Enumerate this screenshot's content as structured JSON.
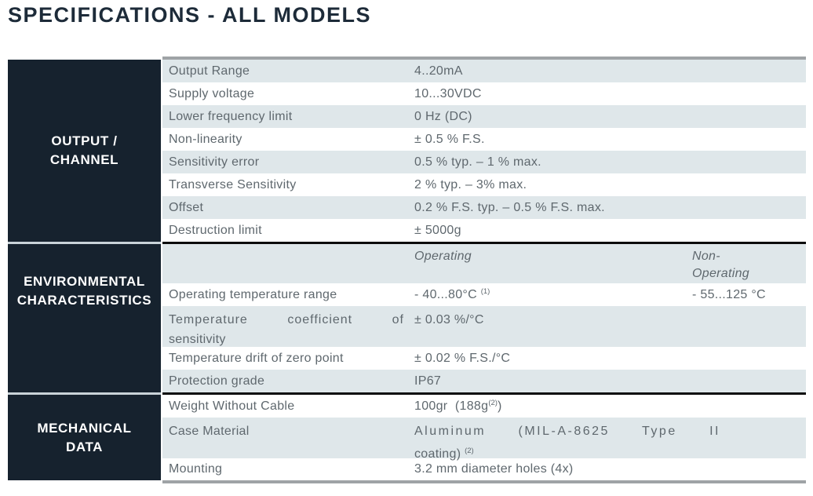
{
  "page_title": "SPECIFICATIONS - ALL MODELS",
  "colors": {
    "header_bg": "#16222e",
    "stripe": "#dfe7ea",
    "row_text": "#5f686e",
    "header_text": "#ffffff",
    "divider_black": "#0c0c0c",
    "outer_border_gray": "#9fa3a6",
    "title_text": "#1d2b39",
    "section_gap": "#c9d3d8"
  },
  "table": {
    "sections": [
      {
        "header": "OUTPUT / CHANNEL",
        "header_lines": [
          "OUTPUT /",
          "CHANNEL"
        ],
        "rows": [
          {
            "label": "Output Range",
            "value": "4..20mA"
          },
          {
            "label": "Supply voltage",
            "value": "10...30VDC"
          },
          {
            "label": "Lower frequency limit",
            "value": "0 Hz (DC)"
          },
          {
            "label": "Non-linearity",
            "value": "± 0.5 % F.S."
          },
          {
            "label": "Sensitivity error",
            "value": "0.5 % typ. – 1 % max."
          },
          {
            "label": "Transverse Sensitivity",
            "value": "2 % typ. – 3% max."
          },
          {
            "label": "Offset",
            "value": "0.2 % F.S. typ. – 0.5 % F.S. max."
          },
          {
            "label": "Destruction limit",
            "value": "± 5000g"
          }
        ]
      },
      {
        "header": "ENVIRONMENTAL CHARACTERISTICS",
        "header_lines": [
          "ENVIRONMENTAL",
          "CHARACTERISTICS"
        ],
        "col_headers": {
          "operating": "Operating",
          "non_operating": "Non-Operating"
        },
        "rows": [
          {
            "label": "Operating temperature range",
            "value": "- 40...80°C ",
            "value_sup": "(1)",
            "value2": "- 55...125 °C"
          },
          {
            "label_line1": "Temperature coefficient of",
            "label_line2": "sensitivity",
            "value": "± 0.03 %/°C"
          },
          {
            "label": "Temperature drift of zero point",
            "value": "± 0.02 % F.S./°C"
          },
          {
            "label": "Protection grade",
            "value": "IP67"
          }
        ]
      },
      {
        "header": "MECHANICAL DATA",
        "header_lines": [
          "MECHANICAL",
          "DATA"
        ],
        "rows": [
          {
            "label": "Weight Without Cable",
            "value": "100gr  (188g",
            "value_sup": "(2)",
            "value_end": ")"
          },
          {
            "label": "Case Material",
            "value_line1": "Aluminum (MIL-A-8625 Type II",
            "value_line2": "coating) ",
            "value_sup": "(2)"
          },
          {
            "label": "Mounting",
            "value": "3.2 mm diameter holes (4x)"
          }
        ]
      }
    ]
  }
}
